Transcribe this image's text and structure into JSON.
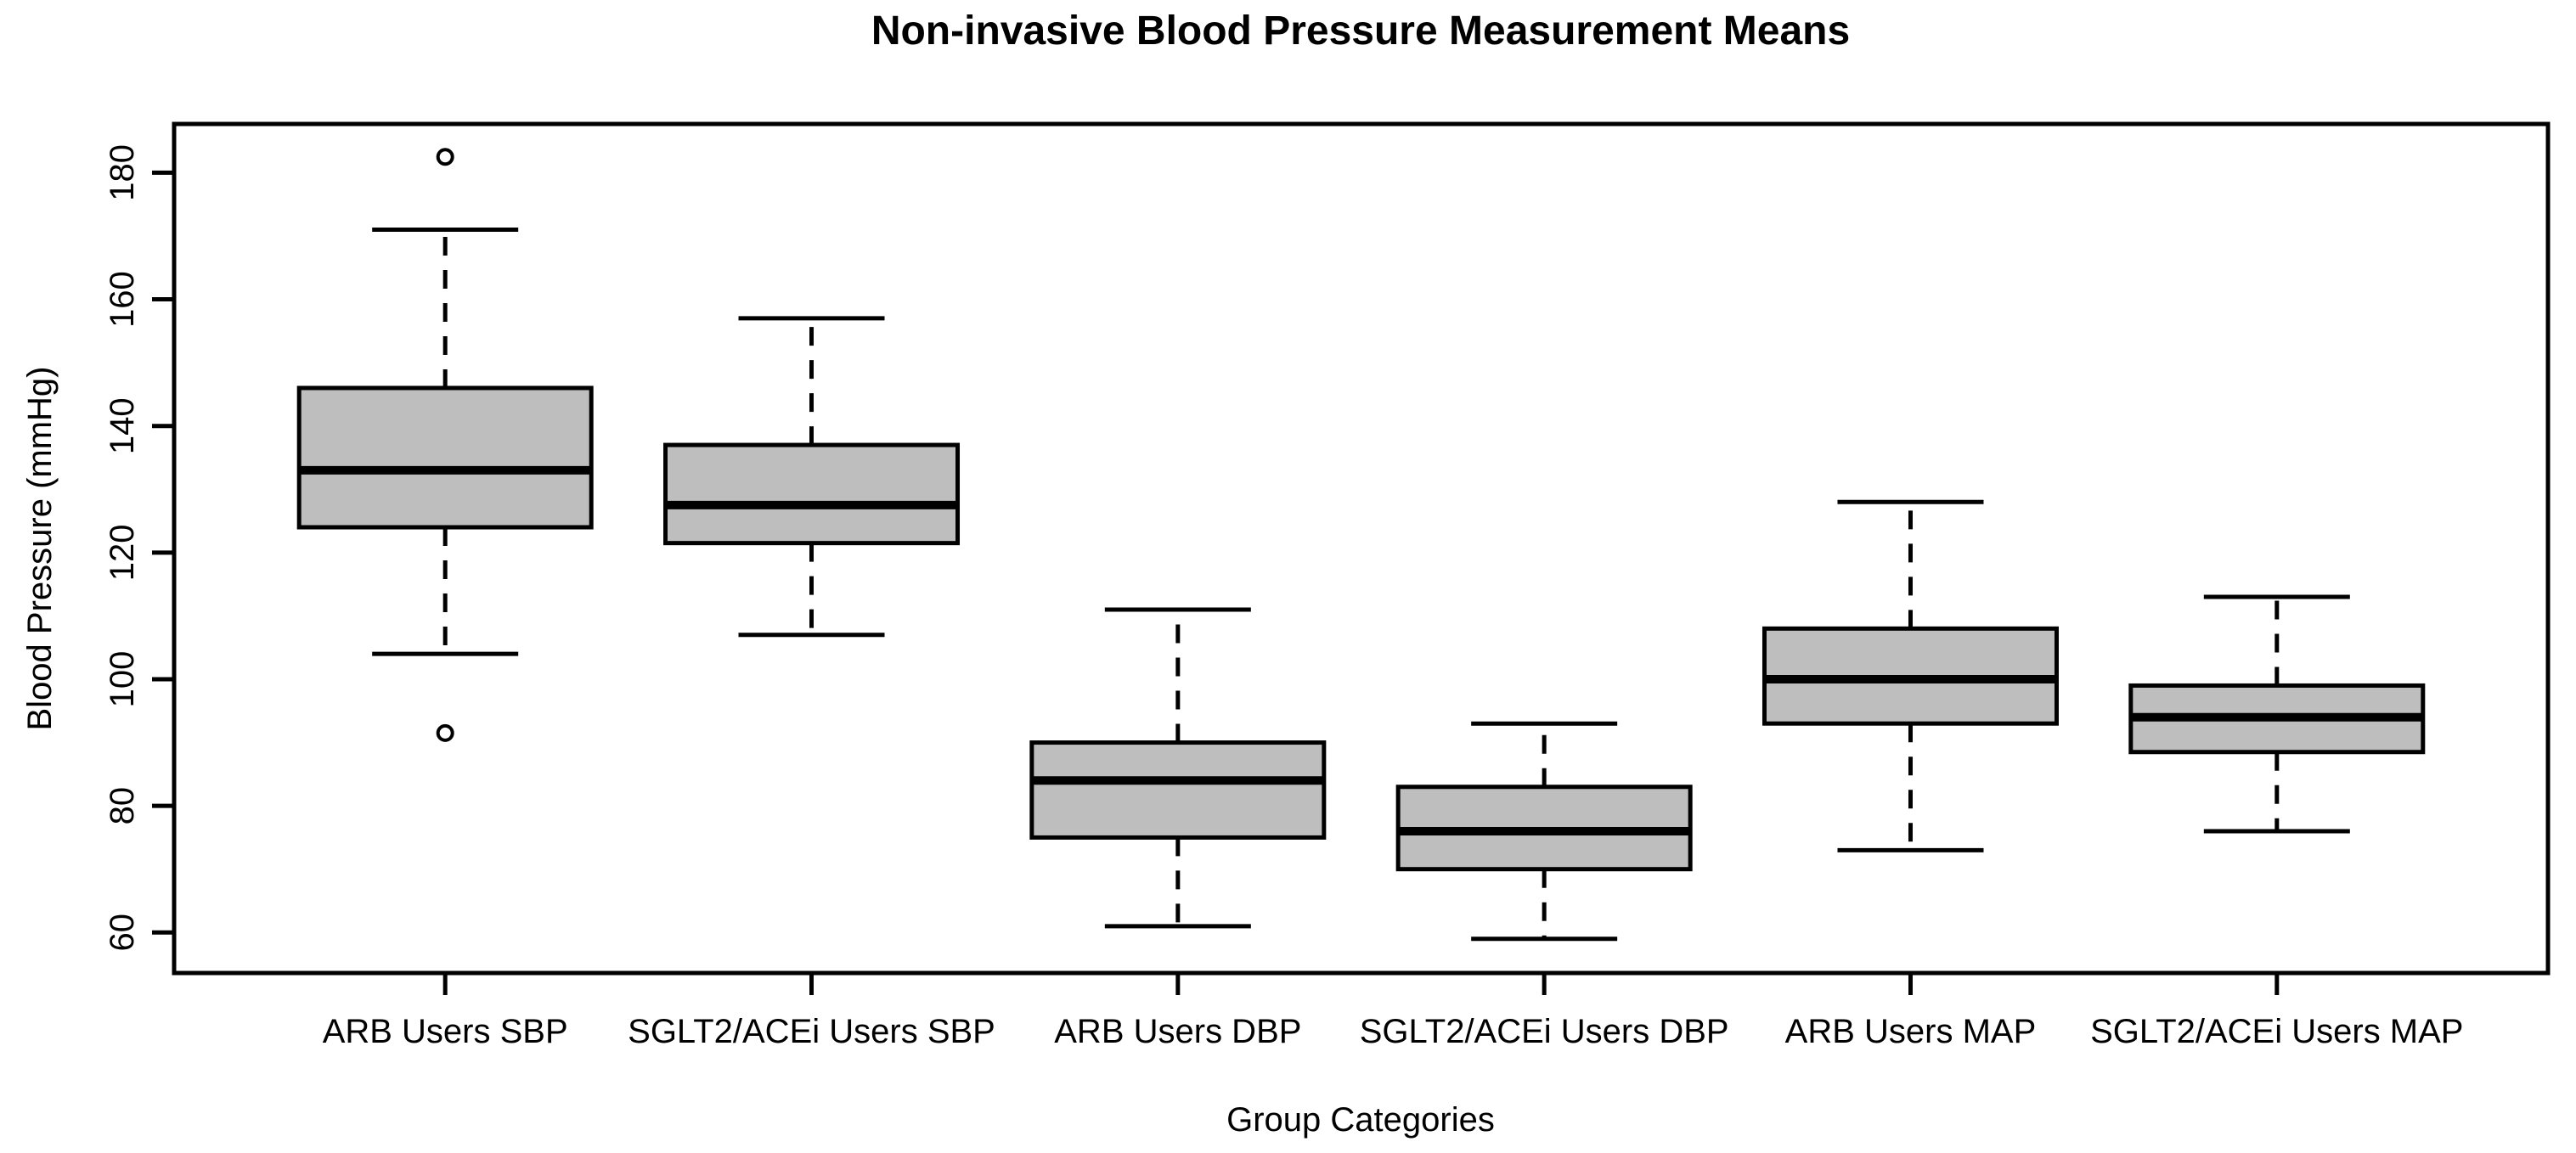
{
  "chart_data": {
    "type": "boxplot",
    "title": "Non-invasive Blood Pressure Measurement Means",
    "xlabel": "Group Categories",
    "ylabel": "Blood Pressure (mmHg)",
    "ylim": [
      53.6,
      187.7
    ],
    "yticks": [
      60,
      80,
      100,
      120,
      140,
      160,
      180
    ],
    "grid": false,
    "legend_position": "none",
    "box_fill_color": "#bebebe",
    "line_color": "#000000",
    "background_color": "#ffffff",
    "categories": [
      "ARB Users SBP",
      "SGLT2/ACEi Users SBP",
      "ARB Users DBP",
      "SGLT2/ACEi Users DBP",
      "ARB Users MAP",
      "SGLT2/ACEi Users MAP"
    ],
    "series": [
      {
        "name": "ARB Users SBP",
        "lower_whisker": 104,
        "q1": 124,
        "median": 133,
        "q3": 146,
        "upper_whisker": 171,
        "outliers": [
          91.5,
          182.5
        ]
      },
      {
        "name": "SGLT2/ACEi Users SBP",
        "lower_whisker": 107,
        "q1": 121.5,
        "median": 127.5,
        "q3": 137,
        "upper_whisker": 157,
        "outliers": []
      },
      {
        "name": "ARB Users DBP",
        "lower_whisker": 61,
        "q1": 75,
        "median": 84,
        "q3": 90,
        "upper_whisker": 111,
        "outliers": []
      },
      {
        "name": "SGLT2/ACEi Users DBP",
        "lower_whisker": 59,
        "q1": 70,
        "median": 76,
        "q3": 83,
        "upper_whisker": 93,
        "outliers": []
      },
      {
        "name": "ARB Users MAP",
        "lower_whisker": 73,
        "q1": 93,
        "median": 100,
        "q3": 108,
        "upper_whisker": 128,
        "outliers": []
      },
      {
        "name": "SGLT2/ACEi Users MAP",
        "lower_whisker": 76,
        "q1": 88.5,
        "median": 94,
        "q3": 99,
        "upper_whisker": 113,
        "outliers": []
      }
    ]
  }
}
